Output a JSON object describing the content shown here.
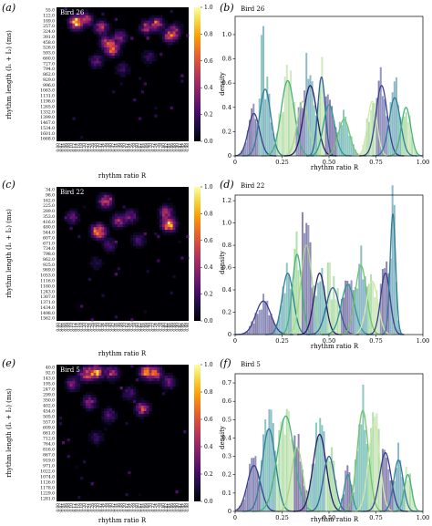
{
  "colors": {
    "heat_stops": [
      "#000004",
      "#1b0c41",
      "#4a0c6b",
      "#781c6d",
      "#a52c60",
      "#cf4446",
      "#ed6925",
      "#fb9b06",
      "#f7d13d",
      "#fcffa4"
    ],
    "hist_palette": [
      "#2b1d6b",
      "#3a3f8f",
      "#345f9c",
      "#2d7e9a",
      "#2e9a8e",
      "#44b27a",
      "#73c56c",
      "#a9d68a",
      "#d2e9a6"
    ]
  },
  "chart_data": [
    {
      "id": "a",
      "panel_label": "(a)",
      "type": "heatmap",
      "title": "Bird 26",
      "xlabel": "rhythm ratio R",
      "ylabel": "rhythm length (I₁ + I₂) (ms)",
      "x_ticks": [
        "0.00",
        "0.02",
        "0.04",
        "0.06",
        "0.08",
        "0.10",
        "0.12",
        "0.14",
        "0.16",
        "0.18",
        "0.20",
        "0.22",
        "0.24",
        "0.26",
        "0.28",
        "0.30",
        "0.32",
        "0.34",
        "0.36",
        "0.38",
        "0.40",
        "0.42",
        "0.44",
        "0.46",
        "0.48",
        "0.50",
        "0.52",
        "0.54",
        "0.56",
        "0.58",
        "0.60",
        "0.62",
        "0.64",
        "0.66",
        "0.68",
        "0.70",
        "0.72",
        "0.74",
        "0.76",
        "0.78",
        "0.80",
        "0.82",
        "0.84",
        "0.86",
        "0.88",
        "0.90",
        "0.92",
        "0.94",
        "0.96",
        "0.98"
      ],
      "y_ticks": [
        "55.0",
        "122.0",
        "189.0",
        "257.0",
        "324.0",
        "391.0",
        "458.0",
        "526.0",
        "593.0",
        "660.0",
        "727.0",
        "794.0",
        "862.0",
        "929.0",
        "996.0",
        "1063.0",
        "1131.0",
        "1198.0",
        "1265.0",
        "1332.0",
        "1399.0",
        "1467.0",
        "1534.0",
        "1601.0",
        "1668.0"
      ],
      "colorbar": {
        "min": 0.0,
        "max": 1.0,
        "ticks": [
          "0.0",
          "0.2",
          "0.4",
          "0.6",
          "0.8",
          "1.0"
        ]
      },
      "hotspots": [
        {
          "x": 0.15,
          "y": 240,
          "intensity": 1.0
        },
        {
          "x": 0.22,
          "y": 200,
          "intensity": 0.55
        },
        {
          "x": 0.34,
          "y": 300,
          "intensity": 0.5
        },
        {
          "x": 0.42,
          "y": 560,
          "intensity": 0.8
        },
        {
          "x": 0.38,
          "y": 480,
          "intensity": 0.45
        },
        {
          "x": 0.48,
          "y": 420,
          "intensity": 0.4
        },
        {
          "x": 0.68,
          "y": 300,
          "intensity": 0.45
        },
        {
          "x": 0.76,
          "y": 260,
          "intensity": 0.5
        },
        {
          "x": 0.86,
          "y": 400,
          "intensity": 0.6
        },
        {
          "x": 0.9,
          "y": 330,
          "intensity": 0.35
        },
        {
          "x": 0.3,
          "y": 700,
          "intensity": 0.3
        },
        {
          "x": 0.5,
          "y": 800,
          "intensity": 0.22
        },
        {
          "x": 0.7,
          "y": 650,
          "intensity": 0.2
        }
      ]
    },
    {
      "id": "b",
      "panel_label": "(b)",
      "type": "area",
      "title": "Bird 26",
      "xlabel": "rhythm ratio R",
      "ylabel": "density",
      "xlim": [
        0,
        1.0
      ],
      "ylim": [
        0,
        1.15
      ],
      "x_ticks": [
        "0",
        "0.25",
        "0.50",
        "0.75",
        "1.00"
      ],
      "y_ticks": [
        "0",
        "0.2",
        "0.4",
        "0.6",
        "0.8",
        "1.0"
      ],
      "peaks": [
        {
          "x": 0.1,
          "height": 0.35,
          "width": 0.03
        },
        {
          "x": 0.16,
          "height": 0.55,
          "width": 0.03
        },
        {
          "x": 0.28,
          "height": 0.62,
          "width": 0.035
        },
        {
          "x": 0.36,
          "height": 0.45,
          "width": 0.03
        },
        {
          "x": 0.4,
          "height": 0.58,
          "width": 0.035
        },
        {
          "x": 0.46,
          "height": 0.65,
          "width": 0.02
        },
        {
          "x": 0.5,
          "height": 0.42,
          "width": 0.03
        },
        {
          "x": 0.58,
          "height": 0.3,
          "width": 0.03
        },
        {
          "x": 0.73,
          "height": 0.45,
          "width": 0.025
        },
        {
          "x": 0.78,
          "height": 0.58,
          "width": 0.03
        },
        {
          "x": 0.85,
          "height": 0.48,
          "width": 0.03
        },
        {
          "x": 0.91,
          "height": 0.4,
          "width": 0.025
        }
      ],
      "bar_peaks": [
        {
          "x": 0.14,
          "height": 1.0
        },
        {
          "x": 0.15,
          "height": 1.08
        },
        {
          "x": 0.28,
          "height": 0.85
        },
        {
          "x": 0.38,
          "height": 0.85
        },
        {
          "x": 0.46,
          "height": 0.9
        },
        {
          "x": 0.77,
          "height": 0.72
        },
        {
          "x": 0.86,
          "height": 0.65
        }
      ]
    },
    {
      "id": "c",
      "panel_label": "(c)",
      "type": "heatmap",
      "title": "Bird 22",
      "xlabel": "rhythm ratio R",
      "ylabel": "rhythm length (I₁ + I₂) (ms)",
      "x_ticks": [
        "0.00",
        "0.02",
        "0.04",
        "0.06",
        "0.08",
        "0.10",
        "0.12",
        "0.14",
        "0.16",
        "0.18",
        "0.20",
        "0.22",
        "0.24",
        "0.26",
        "0.28",
        "0.30",
        "0.32",
        "0.34",
        "0.36",
        "0.38",
        "0.40",
        "0.42",
        "0.44",
        "0.46",
        "0.48",
        "0.50",
        "0.52",
        "0.54",
        "0.56",
        "0.58",
        "0.60",
        "0.62",
        "0.64",
        "0.66",
        "0.68",
        "0.70",
        "0.72",
        "0.74",
        "0.76",
        "0.78",
        "0.80",
        "0.82",
        "0.84",
        "0.86",
        "0.88",
        "0.90",
        "0.92",
        "0.94",
        "0.96",
        "0.98"
      ],
      "y_ticks": [
        "34.0",
        "98.0",
        "162.0",
        "225.0",
        "289.0",
        "353.0",
        "416.0",
        "480.0",
        "544.0",
        "607.0",
        "671.0",
        "734.0",
        "798.0",
        "862.0",
        "925.0",
        "989.0",
        "1053.0",
        "1116.0",
        "1180.0",
        "1243.0",
        "1307.0",
        "1371.0",
        "1434.0",
        "1498.0",
        "1562.0"
      ],
      "colorbar": {
        "min": 0.0,
        "max": 1.0,
        "ticks": [
          "0.0",
          "0.2",
          "0.4",
          "0.6",
          "0.8",
          "1.0"
        ]
      },
      "hotspots": [
        {
          "x": 0.32,
          "y": 540,
          "intensity": 0.95
        },
        {
          "x": 0.37,
          "y": 200,
          "intensity": 0.6
        },
        {
          "x": 0.47,
          "y": 420,
          "intensity": 0.45
        },
        {
          "x": 0.56,
          "y": 370,
          "intensity": 0.35
        },
        {
          "x": 0.85,
          "y": 460,
          "intensity": 1.0
        },
        {
          "x": 0.83,
          "y": 320,
          "intensity": 0.45
        },
        {
          "x": 0.12,
          "y": 380,
          "intensity": 0.3
        },
        {
          "x": 0.4,
          "y": 700,
          "intensity": 0.25
        },
        {
          "x": 0.62,
          "y": 640,
          "intensity": 0.25
        },
        {
          "x": 0.3,
          "y": 900,
          "intensity": 0.15
        }
      ]
    },
    {
      "id": "d",
      "panel_label": "(d)",
      "type": "area",
      "title": "Bird 22",
      "xlabel": "rhythm ratio R",
      "ylabel": "density",
      "xlim": [
        0,
        1.0
      ],
      "ylim": [
        0,
        1.25
      ],
      "x_ticks": [
        "0",
        "0.25",
        "0.50",
        "0.75",
        "1.00"
      ],
      "y_ticks": [
        "0",
        "0.2",
        "0.4",
        "0.6",
        "0.8",
        "1.0",
        "1.2"
      ],
      "peaks": [
        {
          "x": 0.15,
          "height": 0.3,
          "width": 0.04
        },
        {
          "x": 0.28,
          "height": 0.55,
          "width": 0.03
        },
        {
          "x": 0.33,
          "height": 0.72,
          "width": 0.025
        },
        {
          "x": 0.38,
          "height": 0.8,
          "width": 0.03
        },
        {
          "x": 0.45,
          "height": 0.55,
          "width": 0.03
        },
        {
          "x": 0.52,
          "height": 0.42,
          "width": 0.035
        },
        {
          "x": 0.6,
          "height": 0.45,
          "width": 0.035
        },
        {
          "x": 0.67,
          "height": 0.62,
          "width": 0.03
        },
        {
          "x": 0.73,
          "height": 0.48,
          "width": 0.03
        },
        {
          "x": 0.8,
          "height": 0.55,
          "width": 0.025
        },
        {
          "x": 0.84,
          "height": 1.08,
          "width": 0.015
        }
      ],
      "bar_peaks": [
        {
          "x": 0.33,
          "height": 0.95
        },
        {
          "x": 0.36,
          "height": 1.1
        },
        {
          "x": 0.38,
          "height": 1.0
        },
        {
          "x": 0.5,
          "height": 0.8
        },
        {
          "x": 0.67,
          "height": 0.82
        },
        {
          "x": 0.84,
          "height": 1.12
        }
      ]
    },
    {
      "id": "e",
      "panel_label": "(e)",
      "type": "heatmap",
      "title": "Bird 5",
      "xlabel": "rhythm ratio R",
      "ylabel": "rhythm length (I₁ + I₂) (ms)",
      "x_ticks": [
        "0.00",
        "0.02",
        "0.04",
        "0.06",
        "0.08",
        "0.10",
        "0.12",
        "0.14",
        "0.16",
        "0.18",
        "0.20",
        "0.22",
        "0.24",
        "0.26",
        "0.28",
        "0.30",
        "0.32",
        "0.34",
        "0.36",
        "0.38",
        "0.40",
        "0.42",
        "0.44",
        "0.46",
        "0.48",
        "0.50",
        "0.52",
        "0.54",
        "0.56",
        "0.58",
        "0.60",
        "0.62",
        "0.64",
        "0.66",
        "0.68",
        "0.70",
        "0.72",
        "0.74",
        "0.76",
        "0.78",
        "0.80",
        "0.82",
        "0.84",
        "0.86",
        "0.88",
        "0.90",
        "0.92",
        "0.94",
        "0.96",
        "0.98"
      ],
      "y_ticks": [
        "40.0",
        "92.0",
        "143.0",
        "195.0",
        "247.0",
        "299.0",
        "350.0",
        "402.0",
        "454.0",
        "505.0",
        "557.0",
        "609.0",
        "661.0",
        "712.0",
        "764.0",
        "816.0",
        "867.0",
        "919.0",
        "971.0",
        "1022.0",
        "1074.0",
        "1126.0",
        "1178.0",
        "1229.0",
        "1281.0"
      ],
      "colorbar": {
        "min": 0.0,
        "max": 1.0,
        "ticks": [
          "0.0",
          "0.2",
          "0.4",
          "0.6",
          "0.8",
          "1.0"
        ]
      },
      "hotspots": [
        {
          "x": 0.3,
          "y": 110,
          "intensity": 0.85
        },
        {
          "x": 0.22,
          "y": 125,
          "intensity": 0.6
        },
        {
          "x": 0.42,
          "y": 115,
          "intensity": 0.5
        },
        {
          "x": 0.68,
          "y": 110,
          "intensity": 0.7
        },
        {
          "x": 0.75,
          "y": 120,
          "intensity": 0.55
        },
        {
          "x": 0.85,
          "y": 200,
          "intensity": 0.35
        },
        {
          "x": 0.12,
          "y": 220,
          "intensity": 0.35
        },
        {
          "x": 0.25,
          "y": 380,
          "intensity": 0.4
        },
        {
          "x": 0.65,
          "y": 440,
          "intensity": 0.55
        },
        {
          "x": 0.4,
          "y": 500,
          "intensity": 0.3
        },
        {
          "x": 0.3,
          "y": 700,
          "intensity": 0.2
        },
        {
          "x": 0.55,
          "y": 300,
          "intensity": 0.25
        }
      ]
    },
    {
      "id": "f",
      "panel_label": "(f)",
      "type": "area",
      "title": "Bird 5",
      "xlabel": "rhythm ratio R",
      "ylabel": "density",
      "xlim": [
        0,
        1.0
      ],
      "ylim": [
        0,
        0.75
      ],
      "x_ticks": [
        "0",
        "0.25",
        "0.50",
        "0.75",
        "1.00"
      ],
      "y_ticks": [
        "0",
        "0.1",
        "0.2",
        "0.3",
        "0.4",
        "0.5",
        "0.6",
        "0.7"
      ],
      "peaks": [
        {
          "x": 0.1,
          "height": 0.25,
          "width": 0.035
        },
        {
          "x": 0.18,
          "height": 0.45,
          "width": 0.035
        },
        {
          "x": 0.27,
          "height": 0.52,
          "width": 0.045
        },
        {
          "x": 0.33,
          "height": 0.35,
          "width": 0.03
        },
        {
          "x": 0.45,
          "height": 0.42,
          "width": 0.035
        },
        {
          "x": 0.5,
          "height": 0.3,
          "width": 0.03
        },
        {
          "x": 0.6,
          "height": 0.2,
          "width": 0.02
        },
        {
          "x": 0.68,
          "height": 0.55,
          "width": 0.03
        },
        {
          "x": 0.74,
          "height": 0.48,
          "width": 0.03
        },
        {
          "x": 0.8,
          "height": 0.32,
          "width": 0.03
        },
        {
          "x": 0.87,
          "height": 0.28,
          "width": 0.025
        },
        {
          "x": 0.92,
          "height": 0.2,
          "width": 0.02
        }
      ],
      "bar_peaks": [
        {
          "x": 0.18,
          "height": 0.58
        },
        {
          "x": 0.28,
          "height": 0.56
        },
        {
          "x": 0.45,
          "height": 0.55
        },
        {
          "x": 0.68,
          "height": 0.72
        },
        {
          "x": 0.74,
          "height": 0.62
        }
      ]
    }
  ]
}
